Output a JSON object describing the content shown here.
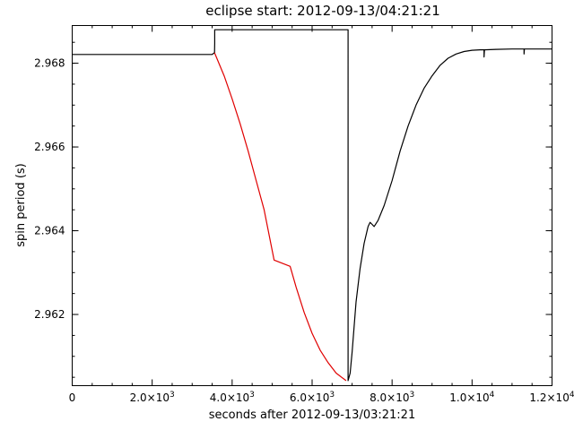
{
  "chart_data": {
    "type": "line",
    "title": "eclipse start: 2012-09-13/04:21:21",
    "xlabel": "seconds after 2012-09-13/03:21:21",
    "ylabel": "spin period (s)",
    "xlim": [
      0,
      12000
    ],
    "ylim": [
      2.9603,
      2.9689
    ],
    "grid": false,
    "x_ticks": [
      {
        "value": 0,
        "label": "0",
        "mant": "",
        "exp": ""
      },
      {
        "value": 2000,
        "label": "",
        "mant": "2.0×10",
        "exp": "3"
      },
      {
        "value": 4000,
        "label": "",
        "mant": "4.0×10",
        "exp": "3"
      },
      {
        "value": 6000,
        "label": "",
        "mant": "6.0×10",
        "exp": "3"
      },
      {
        "value": 8000,
        "label": "",
        "mant": "8.0×10",
        "exp": "3"
      },
      {
        "value": 10000,
        "label": "",
        "mant": "1.0×10",
        "exp": "4"
      },
      {
        "value": 12000,
        "label": "",
        "mant": "1.2×10",
        "exp": "4"
      }
    ],
    "y_ticks": [
      {
        "value": 2.962,
        "label": "2.962"
      },
      {
        "value": 2.964,
        "label": "2.964"
      },
      {
        "value": 2.966,
        "label": "2.966"
      },
      {
        "value": 2.968,
        "label": "2.968"
      }
    ],
    "series": [
      {
        "color": "#000000",
        "points": [
          [
            0,
            2.96821
          ],
          [
            3500,
            2.96821
          ],
          [
            3560,
            2.96825
          ],
          [
            3565,
            2.96848
          ],
          [
            3565,
            2.9688
          ],
          [
            6900,
            2.9688
          ],
          [
            6900,
            2.96042
          ],
          [
            6950,
            2.9606
          ],
          [
            7000,
            2.9611
          ],
          [
            7050,
            2.9617
          ],
          [
            7100,
            2.9623
          ],
          [
            7200,
            2.9631
          ],
          [
            7300,
            2.9637
          ],
          [
            7400,
            2.9641
          ],
          [
            7450,
            2.9642
          ],
          [
            7500,
            2.96415
          ],
          [
            7550,
            2.9641
          ],
          [
            7650,
            2.96425
          ],
          [
            7800,
            2.9646
          ],
          [
            8000,
            2.9652
          ],
          [
            8200,
            2.9659
          ],
          [
            8400,
            2.9665
          ],
          [
            8600,
            2.967
          ],
          [
            8800,
            2.9674
          ],
          [
            9000,
            2.9677
          ],
          [
            9200,
            2.96795
          ],
          [
            9400,
            2.96812
          ],
          [
            9600,
            2.96822
          ],
          [
            9800,
            2.96828
          ],
          [
            10000,
            2.96831
          ],
          [
            10200,
            2.96832
          ],
          [
            10300,
            2.96832
          ],
          [
            10300,
            2.96815
          ],
          [
            10310,
            2.96832
          ],
          [
            10600,
            2.96833
          ],
          [
            11000,
            2.96834
          ],
          [
            11300,
            2.96834
          ],
          [
            11300,
            2.96822
          ],
          [
            11310,
            2.96834
          ],
          [
            11600,
            2.96834
          ],
          [
            12000,
            2.96834
          ]
        ]
      },
      {
        "color": "#e00000",
        "points": [
          [
            3560,
            2.96825
          ],
          [
            3800,
            2.9677
          ],
          [
            4000,
            2.96715
          ],
          [
            4200,
            2.96655
          ],
          [
            4400,
            2.9659
          ],
          [
            4600,
            2.9652
          ],
          [
            4800,
            2.9645
          ],
          [
            5050,
            2.9633
          ],
          [
            5450,
            2.96315
          ],
          [
            5600,
            2.96265
          ],
          [
            5800,
            2.96205
          ],
          [
            6000,
            2.96155
          ],
          [
            6200,
            2.96115
          ],
          [
            6400,
            2.96085
          ],
          [
            6600,
            2.9606
          ],
          [
            6850,
            2.96042
          ]
        ]
      }
    ]
  }
}
